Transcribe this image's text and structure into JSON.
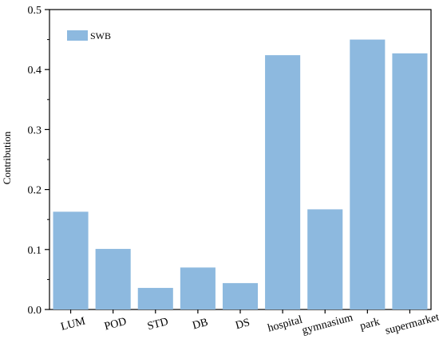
{
  "chart_data": {
    "type": "bar",
    "categories": [
      "LUM",
      "POD",
      "STD",
      "DB",
      "DS",
      "hospital",
      "gymnasium",
      "park",
      "supermarket"
    ],
    "series": [
      {
        "name": "SWB",
        "values": [
          0.163,
          0.101,
          0.036,
          0.07,
          0.044,
          0.424,
          0.167,
          0.45,
          0.427
        ]
      }
    ],
    "title": "",
    "xlabel": "",
    "ylabel": "Contribution",
    "ylim": [
      0,
      0.5
    ],
    "yticks": [
      "0.0",
      "0.1",
      "0.2",
      "0.3",
      "0.4",
      "0.5"
    ],
    "grid": false,
    "legend_position": "top-left",
    "colors": {
      "bar": "#8db9df",
      "axis": "#000000"
    }
  }
}
